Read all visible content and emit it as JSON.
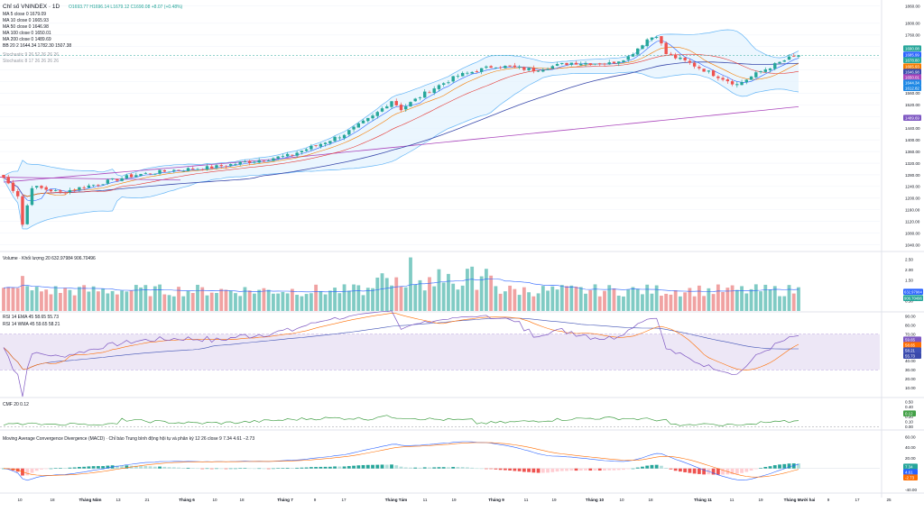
{
  "header": {
    "title": "Chỉ số VNINDEX · 1D",
    "ohlc": "O1693.77 H1696.14 L1679.12 C1690.08 +8.07 (+0.48%)"
  },
  "legends": {
    "ma5": "MA 5 close 0  1679.09",
    "ma10": "MA 10 close 0  1665.93",
    "ma50": "MA 50 close 0  1646.98",
    "ma100": "MA 100 close 0  1650.01",
    "ma200": "MA 200 close 0  1489.69",
    "bb": "BB 20 2  1644.34  1782.30  1507.38",
    "stoch1": "Stochastic 9 26 52 26 26 26",
    "stoch2": "Stochastic 8 17 26 26 26 26",
    "volume": "Volume · Khối lượng 20   632.97984  906.70496",
    "rsi1": "RSI 14 EMA 45   58.65  55.73",
    "rsi2": "RSI 14 WMA 45   59.65  58.21",
    "cmf": "CMF 20   0.12",
    "macd": "Moving Average Convergence Divergence (MACD) · Chỉ báo Trung bình động hội tụ và phân kỳ  12 26 close 9   7.34  4.61  −2.73"
  },
  "colors": {
    "up": "#26a69a",
    "down": "#ef5350",
    "vol_up": "#80cbc4",
    "vol_down": "#f0a2a2",
    "ma5": "#2962ff",
    "ma10": "#f57c00",
    "ma20": "#e53935",
    "ma50": "#3949ab",
    "ma200": "#ab47bc",
    "bb_band": "#64b5f6",
    "bb_fill": "#e3f2fd",
    "rsi_band": "#ede7f6",
    "rsi_line": "#7e57c2",
    "cmf": "#43a047",
    "macd_line": "#2962ff",
    "signal": "#ff6d00"
  },
  "chart_data": [
    {
      "type": "candlestick",
      "title": "Chỉ số VNINDEX · 1D",
      "ylim": [
        1020,
        1880
      ],
      "ticks": [
        "1860.00",
        "1800.00",
        "1760.00",
        "1720.00",
        "1680.00",
        "1640.00",
        "1600.00",
        "1560.00",
        "1520.00",
        "1480.00",
        "1440.00",
        "1400.00",
        "1360.00",
        "1320.00",
        "1280.00",
        "1240.00",
        "1200.00",
        "1160.00",
        "1120.00",
        "1080.00",
        "1040.00"
      ],
      "tick_values": [
        1860,
        1800,
        1760,
        1720,
        1680,
        1640,
        1600,
        1560,
        1520,
        1480,
        1440,
        1400,
        1360,
        1320,
        1280,
        1240,
        1200,
        1160,
        1120,
        1080,
        1040
      ],
      "price_labels": [
        "1690.08",
        "1685.99",
        "1678.80",
        "1665.93",
        "1646.98",
        "1650.01",
        "1644.34",
        "1612.82",
        "1489.69"
      ],
      "n_days": 169,
      "closes_anchor": [
        [
          0,
          1270
        ],
        [
          3,
          1210
        ],
        [
          4,
          1110
        ],
        [
          6,
          1240
        ],
        [
          12,
          1220
        ],
        [
          20,
          1250
        ],
        [
          28,
          1280
        ],
        [
          36,
          1296
        ],
        [
          44,
          1305
        ],
        [
          52,
          1326
        ],
        [
          60,
          1345
        ],
        [
          66,
          1380
        ],
        [
          72,
          1420
        ],
        [
          78,
          1480
        ],
        [
          82,
          1535
        ],
        [
          84,
          1506
        ],
        [
          90,
          1570
        ],
        [
          96,
          1620
        ],
        [
          104,
          1655
        ],
        [
          112,
          1640
        ],
        [
          120,
          1665
        ],
        [
          128,
          1662
        ],
        [
          132,
          1685
        ],
        [
          136,
          1745
        ],
        [
          138,
          1760
        ],
        [
          140,
          1695
        ],
        [
          144,
          1670
        ],
        [
          150,
          1625
        ],
        [
          155,
          1590
        ],
        [
          160,
          1635
        ],
        [
          166,
          1680
        ],
        [
          168,
          1690
        ]
      ]
    },
    {
      "type": "bar",
      "title": "Volume · Khối lượng 20",
      "ylim": [
        0,
        2.8
      ],
      "ticks": [
        "2.50",
        "2.00",
        "1.50",
        "1.00",
        "0.50"
      ],
      "tick_values": [
        2.5,
        2.0,
        1.5,
        1.0,
        0.5
      ],
      "price_labels": [
        "632.97984",
        "906.70496"
      ]
    },
    {
      "type": "line",
      "title": "RSI 14",
      "ylim": [
        0,
        95
      ],
      "ticks": [
        "90.00",
        "80.00",
        "70.00",
        "60.00",
        "50.00",
        "40.00",
        "30.00",
        "20.00",
        "10.00"
      ],
      "tick_values": [
        90,
        80,
        70,
        60,
        50,
        40,
        30,
        20,
        10
      ],
      "band": [
        30,
        70
      ],
      "price_labels": [
        "59.65",
        "58.65",
        "58.21",
        "55.73"
      ]
    },
    {
      "type": "line",
      "title": "CMF 20",
      "ylim": [
        -0.05,
        0.55
      ],
      "ticks": [
        "0.50",
        "0.40",
        "0.30",
        "0.20",
        "0.10",
        "0.00"
      ],
      "tick_values": [
        0.5,
        0.4,
        0.3,
        0.2,
        0.1,
        0.0
      ],
      "price_labels": [
        "0.12"
      ]
    },
    {
      "type": "bar",
      "title": "MACD 12 26 close 9",
      "ylim": [
        -45,
        68
      ],
      "ticks": [
        "60.00",
        "40.00",
        "20.00",
        "0.00",
        "-20.00",
        "-40.00"
      ],
      "tick_values": [
        60,
        40,
        20,
        0,
        -20,
        -40
      ],
      "price_labels": [
        "7.34",
        "4.61",
        "-2.73"
      ]
    }
  ],
  "time_axis": {
    "labels": [
      "10",
      "18",
      "Tháng Năm",
      "13",
      "21",
      "Tháng 6",
      "10",
      "18",
      "Tháng 7",
      "9",
      "17",
      "Tháng Tám",
      "11",
      "19",
      "Tháng 9",
      "11",
      "19",
      "Tháng 10",
      "10",
      "18",
      "Tháng 11",
      "11",
      "19",
      "Tháng Mười hai",
      "9",
      "17",
      "25"
    ],
    "positions": [
      22,
      58,
      100,
      131,
      163,
      207,
      238,
      268,
      316,
      349,
      381,
      439,
      471,
      503,
      550,
      583,
      614,
      659,
      689,
      721,
      779,
      811,
      843,
      886,
      918,
      950,
      985
    ]
  }
}
